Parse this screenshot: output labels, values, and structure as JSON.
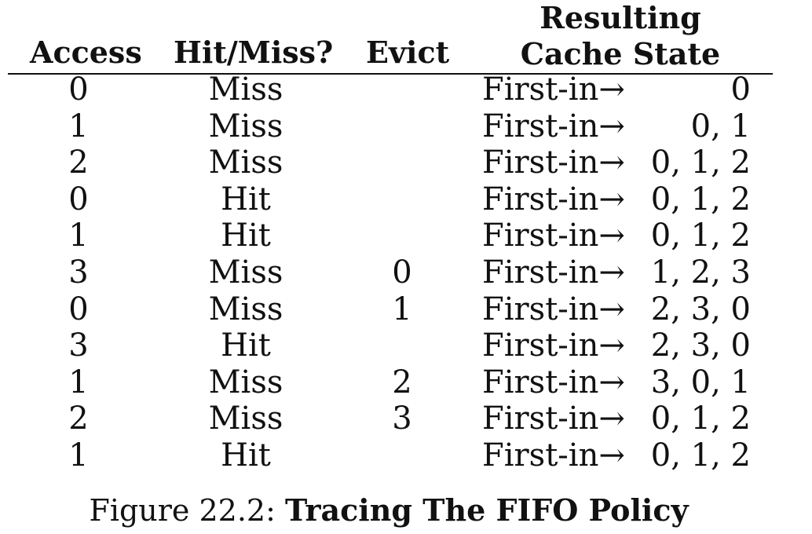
{
  "table": {
    "headers": {
      "access": "Access",
      "hit_miss": "Hit/Miss?",
      "evict": "Evict",
      "result_line1": "Resulting",
      "result_line2": "Cache State"
    },
    "rows": [
      {
        "access": "0",
        "hit_miss": "Miss",
        "evict": "",
        "first_in": "First-in→",
        "state": "0"
      },
      {
        "access": "1",
        "hit_miss": "Miss",
        "evict": "",
        "first_in": "First-in→",
        "state": "0, 1"
      },
      {
        "access": "2",
        "hit_miss": "Miss",
        "evict": "",
        "first_in": "First-in→",
        "state": "0, 1, 2"
      },
      {
        "access": "0",
        "hit_miss": "Hit",
        "evict": "",
        "first_in": "First-in→",
        "state": "0, 1, 2"
      },
      {
        "access": "1",
        "hit_miss": "Hit",
        "evict": "",
        "first_in": "First-in→",
        "state": "0, 1, 2"
      },
      {
        "access": "3",
        "hit_miss": "Miss",
        "evict": "0",
        "first_in": "First-in→",
        "state": "1, 2, 3"
      },
      {
        "access": "0",
        "hit_miss": "Miss",
        "evict": "1",
        "first_in": "First-in→",
        "state": "2, 3, 0"
      },
      {
        "access": "3",
        "hit_miss": "Hit",
        "evict": "",
        "first_in": "First-in→",
        "state": "2, 3, 0"
      },
      {
        "access": "1",
        "hit_miss": "Miss",
        "evict": "2",
        "first_in": "First-in→",
        "state": "3, 0, 1"
      },
      {
        "access": "2",
        "hit_miss": "Miss",
        "evict": "3",
        "first_in": "First-in→",
        "state": "0, 1, 2"
      },
      {
        "access": "1",
        "hit_miss": "Hit",
        "evict": "",
        "first_in": "First-in→",
        "state": "0, 1, 2"
      }
    ]
  },
  "caption": {
    "label": "Figure 22.2:",
    "title": "Tracing The FIFO Policy"
  }
}
